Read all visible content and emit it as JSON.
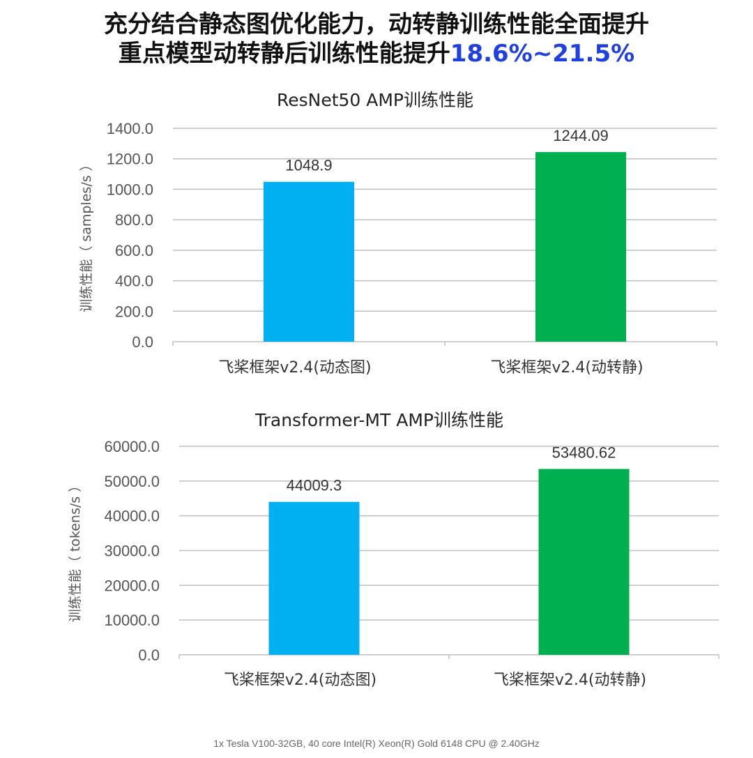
{
  "headline": {
    "line1": "充分结合静态图优化能力，动转静训练性能全面提升",
    "line2_prefix": "重点模型动转静后训练性能提升",
    "line2_highlight": "18.6%~21.5%"
  },
  "footer_note": "1x Tesla V100-32GB, 40 core Intel(R)  Xeon(R) Gold 6148 CPU @ 2.40GHz",
  "colors": {
    "dynamic": "#00b0f0",
    "static": "#00b050",
    "highlight": "#1f3fe0"
  },
  "chart_data": [
    {
      "type": "bar",
      "title": "ResNet50 AMP训练性能",
      "ylabel": "训练性能（ samples/s ）",
      "xlabel": "",
      "categories": [
        "飞桨框架v2.4(动态图)",
        "飞桨框架v2.4(动转静)"
      ],
      "values": [
        1048.9,
        1244.09
      ],
      "value_labels": [
        "1048.9",
        "1244.09"
      ],
      "yticks": [
        "0.0",
        "200.0",
        "400.0",
        "600.0",
        "800.0",
        "1000.0",
        "1200.0",
        "1400.0"
      ],
      "ylim": [
        0,
        1400
      ],
      "grid": true
    },
    {
      "type": "bar",
      "title": "Transformer-MT AMP训练性能",
      "ylabel": "训练性能（ tokens/s ）",
      "xlabel": "",
      "categories": [
        "飞桨框架v2.4(动态图)",
        "飞桨框架v2.4(动转静)"
      ],
      "values": [
        44009.3,
        53480.62
      ],
      "value_labels": [
        "44009.3",
        "53480.62"
      ],
      "yticks": [
        "0.0",
        "10000.0",
        "20000.0",
        "30000.0",
        "40000.0",
        "50000.0",
        "60000.0"
      ],
      "ylim": [
        0,
        60000
      ],
      "grid": true
    }
  ]
}
